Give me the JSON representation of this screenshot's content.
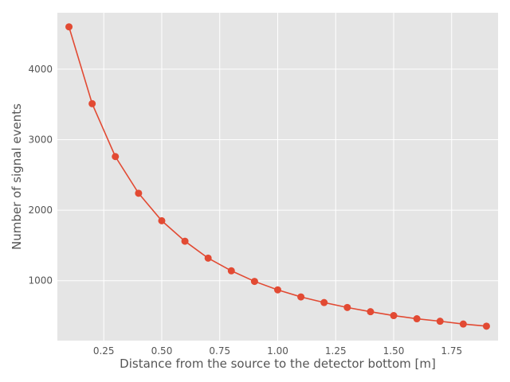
{
  "chart_data": {
    "type": "line",
    "title": "",
    "xlabel": "Distance from the source to the detector bottom [m]",
    "ylabel": "Number of signal events",
    "xlim": [
      0.05,
      1.95
    ],
    "ylim": [
      150,
      4800
    ],
    "x_ticks": [
      0.25,
      0.5,
      0.75,
      1.0,
      1.25,
      1.5,
      1.75
    ],
    "x_tick_labels": [
      "0.25",
      "0.50",
      "0.75",
      "1.00",
      "1.25",
      "1.50",
      "1.75"
    ],
    "y_ticks": [
      1000,
      2000,
      3000,
      4000
    ],
    "y_tick_labels": [
      "1000",
      "2000",
      "3000",
      "4000"
    ],
    "grid": true,
    "legend": "none",
    "colors": {
      "line": "#E24A33",
      "plot_bg": "#E5E5E5",
      "grid": "#FFFFFF"
    },
    "series": [
      {
        "x": [
          0.1,
          0.2,
          0.3,
          0.4,
          0.5,
          0.6,
          0.7,
          0.8,
          0.9,
          1.0,
          1.1,
          1.2,
          1.3,
          1.4,
          1.5,
          1.6,
          1.7,
          1.8,
          1.9
        ],
        "values": [
          4600,
          3510,
          2760,
          2240,
          1850,
          1560,
          1320,
          1140,
          990,
          870,
          770,
          690,
          620,
          560,
          505,
          460,
          425,
          385,
          355
        ]
      }
    ]
  }
}
